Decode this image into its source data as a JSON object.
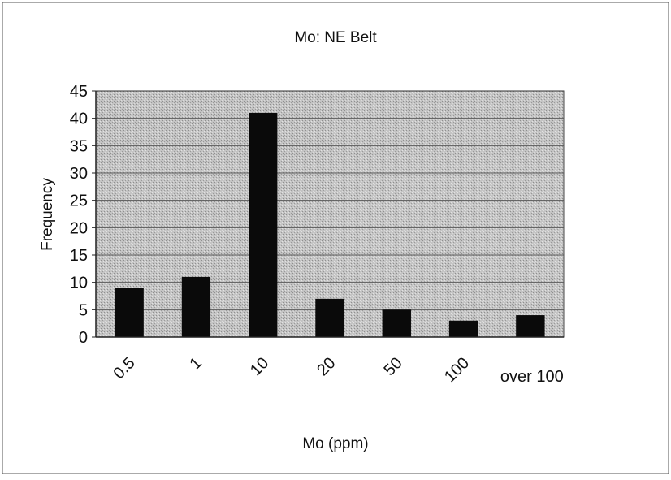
{
  "chart_data": {
    "type": "bar",
    "title": "Mo: NE Belt",
    "xlabel": "Mo (ppm)",
    "ylabel": "Frequency",
    "categories": [
      "0.5",
      "1",
      "10",
      "20",
      "50",
      "100",
      "over 100"
    ],
    "values": [
      9,
      11,
      41,
      7,
      5,
      3,
      4
    ],
    "ylim": [
      0,
      45
    ],
    "yticks": [
      0,
      5,
      10,
      15,
      20,
      25,
      30,
      35,
      40,
      45
    ],
    "grid": true,
    "legend": "none",
    "colors": {
      "bar": "#0a0a0a",
      "plot_background": "#bcbcbc",
      "gridline": "#5a5a5a",
      "frame": "#333333"
    }
  }
}
